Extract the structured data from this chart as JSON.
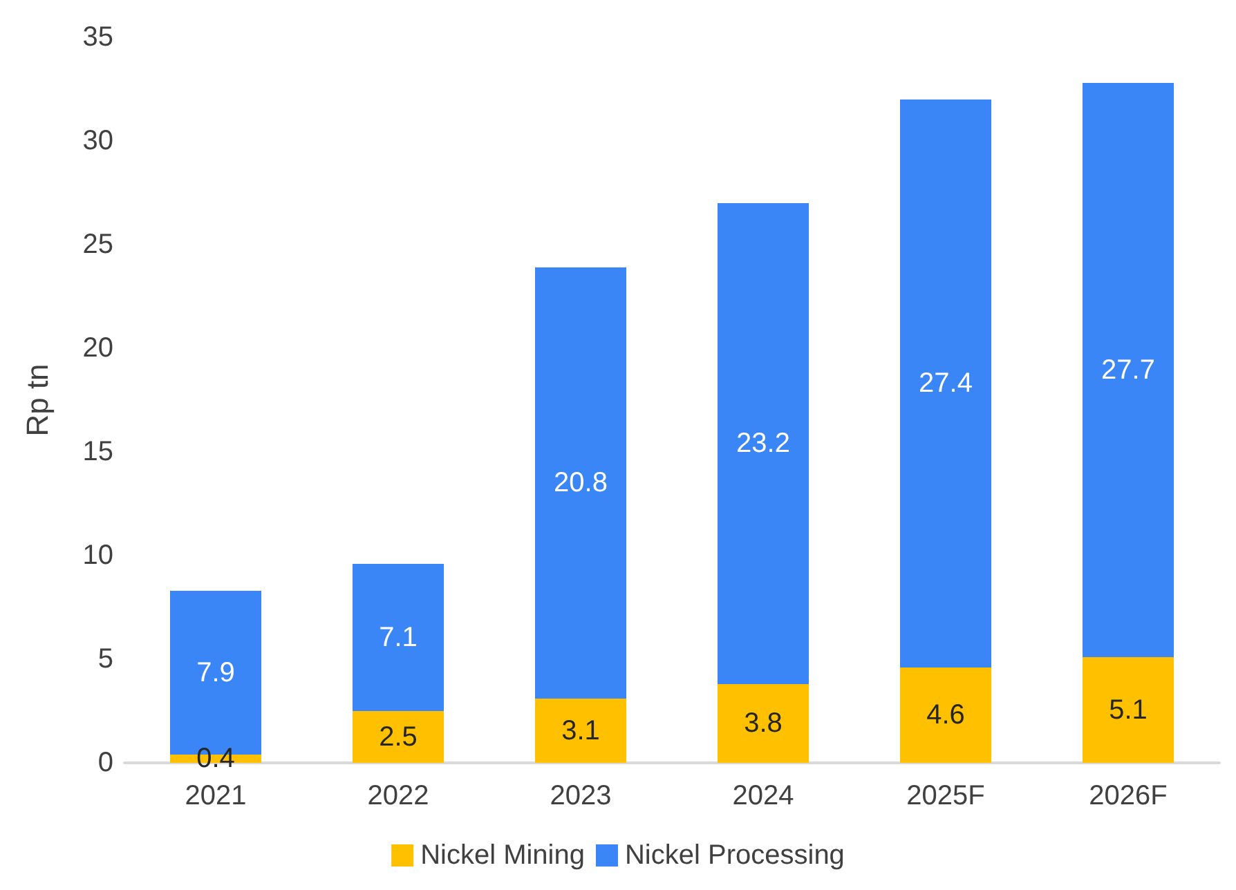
{
  "chart_data": {
    "type": "bar",
    "ylabel": "Rp tn",
    "categories": [
      "2021",
      "2022",
      "2023",
      "2024",
      "2025F",
      "2026F"
    ],
    "stacked": true,
    "data_labels": true,
    "legend": "bottom",
    "grid": false,
    "ylim": [
      0,
      35
    ],
    "yticks": [
      0,
      5,
      10,
      15,
      20,
      25,
      30,
      35
    ],
    "series": [
      {
        "name": "Nickel Mining",
        "color": "#ffc000",
        "values": [
          0.4,
          2.5,
          3.1,
          3.8,
          4.6,
          5.1
        ]
      },
      {
        "name": "Nickel Processing",
        "color": "#3a86f7",
        "values": [
          7.9,
          7.1,
          20.8,
          23.2,
          27.4,
          27.7
        ]
      }
    ]
  }
}
